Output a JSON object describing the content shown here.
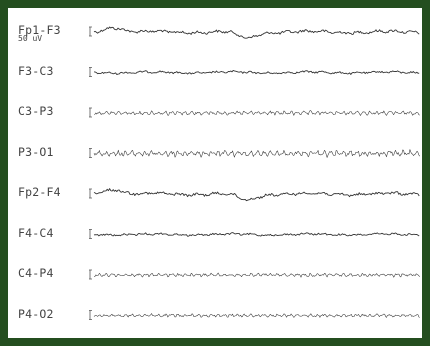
{
  "chart_data": {
    "type": "line",
    "scale_label": "50 uV",
    "colors": {
      "trace": "#333333",
      "frame": "#244e1f",
      "background": "#ffffff"
    },
    "series": [
      {
        "name": "Fp1-F3",
        "amplitude": 2.2,
        "frequency": "mixed",
        "artifacts": [
          {
            "position": 0.06,
            "height": -5
          },
          {
            "position": 0.47,
            "height": 6
          }
        ]
      },
      {
        "name": "F3-C3",
        "amplitude": 1.6,
        "frequency": "mixed",
        "artifacts": []
      },
      {
        "name": "C3-P3",
        "amplitude": 1.8,
        "frequency": "high",
        "artifacts": []
      },
      {
        "name": "P3-O1",
        "amplitude": 2.8,
        "frequency": "high",
        "artifacts": []
      },
      {
        "name": "Fp2-F4",
        "amplitude": 2.2,
        "frequency": "mixed",
        "artifacts": [
          {
            "position": 0.06,
            "height": -5
          },
          {
            "position": 0.47,
            "height": 6
          }
        ]
      },
      {
        "name": "F4-C4",
        "amplitude": 1.5,
        "frequency": "mixed",
        "artifacts": []
      },
      {
        "name": "C4-P4",
        "amplitude": 1.6,
        "frequency": "high",
        "artifacts": []
      },
      {
        "name": "P4-O2",
        "amplitude": 1.4,
        "frequency": "high",
        "artifacts": []
      }
    ]
  }
}
